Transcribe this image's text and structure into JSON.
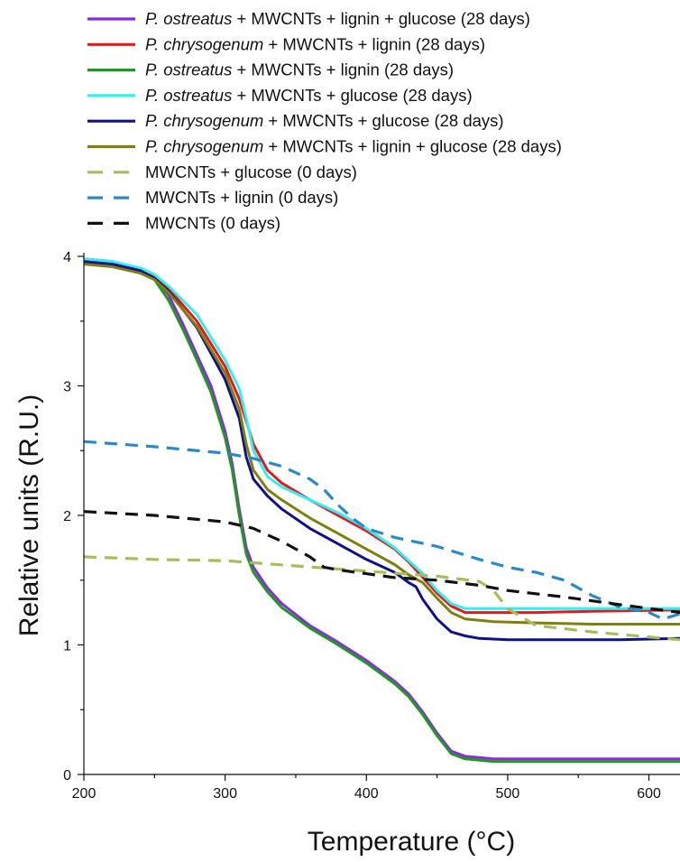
{
  "chart_data": {
    "type": "line",
    "xlabel": "Temperature (°C)",
    "ylabel": "Relative units (R.U.)",
    "xlim": [
      200,
      622
    ],
    "ylim": [
      0,
      4
    ],
    "x_ticks": [
      "200",
      "300",
      "400",
      "500",
      "600"
    ],
    "y_ticks": [
      "0",
      "1",
      "2",
      "3",
      "4"
    ],
    "grid": false,
    "legend_position": "top",
    "series": [
      {
        "legend_parts": [
          {
            "text": "P. ostreatus",
            "italic": true
          },
          {
            "text": " + MWCNTs + lignin + glucose (28 days)",
            "italic": false
          }
        ],
        "color": "#8a2be2",
        "dash": "solid",
        "x": [
          200,
          220,
          240,
          250,
          260,
          270,
          280,
          290,
          300,
          305,
          310,
          315,
          320,
          330,
          340,
          360,
          380,
          400,
          420,
          430,
          440,
          450,
          460,
          470,
          490,
          520,
          560,
          622
        ],
        "y": [
          3.98,
          3.96,
          3.9,
          3.84,
          3.7,
          3.48,
          3.24,
          3.0,
          2.65,
          2.4,
          2.05,
          1.75,
          1.6,
          1.44,
          1.32,
          1.15,
          1.02,
          0.88,
          0.72,
          0.62,
          0.48,
          0.32,
          0.18,
          0.14,
          0.12,
          0.12,
          0.12,
          0.12
        ]
      },
      {
        "legend_parts": [
          {
            "text": "P. chrysogenum",
            "italic": true
          },
          {
            "text": " + MWCNTs + lignin (28 days)",
            "italic": false
          }
        ],
        "color": "#e31a1c",
        "dash": "solid",
        "x": [
          200,
          220,
          240,
          250,
          260,
          280,
          300,
          310,
          320,
          330,
          340,
          360,
          380,
          400,
          420,
          430,
          440,
          450,
          460,
          470,
          490,
          520,
          560,
          622
        ],
        "y": [
          3.98,
          3.96,
          3.9,
          3.85,
          3.75,
          3.5,
          3.15,
          2.9,
          2.55,
          2.35,
          2.25,
          2.12,
          2.0,
          1.88,
          1.74,
          1.64,
          1.52,
          1.4,
          1.3,
          1.25,
          1.25,
          1.25,
          1.26,
          1.27
        ]
      },
      {
        "legend_parts": [
          {
            "text": "P. ostreatus",
            "italic": true
          },
          {
            "text": " + MWCNTs + lignin (28 days)",
            "italic": false
          }
        ],
        "color": "#1f9a1f",
        "dash": "solid",
        "x": [
          200,
          220,
          240,
          250,
          260,
          270,
          280,
          290,
          300,
          305,
          310,
          315,
          320,
          330,
          340,
          360,
          380,
          400,
          420,
          430,
          440,
          450,
          460,
          470,
          490,
          520,
          560,
          622
        ],
        "y": [
          3.95,
          3.93,
          3.88,
          3.82,
          3.66,
          3.44,
          3.2,
          2.95,
          2.6,
          2.35,
          2.0,
          1.7,
          1.56,
          1.41,
          1.29,
          1.13,
          1.0,
          0.86,
          0.7,
          0.6,
          0.46,
          0.3,
          0.16,
          0.12,
          0.1,
          0.1,
          0.1,
          0.1
        ]
      },
      {
        "legend_parts": [
          {
            "text": "P. ostreatus",
            "italic": true
          },
          {
            "text": " + MWCNTs + glucose (28 days)",
            "italic": false
          }
        ],
        "color": "#33f0f0",
        "dash": "solid",
        "x": [
          200,
          220,
          240,
          250,
          260,
          280,
          300,
          310,
          315,
          320,
          330,
          340,
          360,
          380,
          400,
          420,
          430,
          440,
          450,
          460,
          470,
          490,
          520,
          560,
          622
        ],
        "y": [
          3.98,
          3.96,
          3.91,
          3.86,
          3.77,
          3.55,
          3.2,
          2.98,
          2.75,
          2.5,
          2.3,
          2.22,
          2.12,
          2.02,
          1.9,
          1.75,
          1.65,
          1.55,
          1.42,
          1.32,
          1.28,
          1.28,
          1.28,
          1.28,
          1.28
        ]
      },
      {
        "legend_parts": [
          {
            "text": "P. chrysogenum",
            "italic": true
          },
          {
            "text": " + MWCNTs + glucose (28 days)",
            "italic": false
          }
        ],
        "color": "#10108a",
        "dash": "solid",
        "x": [
          200,
          220,
          240,
          250,
          260,
          280,
          300,
          310,
          315,
          320,
          330,
          340,
          360,
          380,
          400,
          420,
          430,
          435,
          440,
          450,
          460,
          470,
          480,
          500,
          540,
          580,
          622
        ],
        "y": [
          3.96,
          3.94,
          3.89,
          3.83,
          3.73,
          3.45,
          3.05,
          2.75,
          2.45,
          2.28,
          2.15,
          2.05,
          1.9,
          1.78,
          1.66,
          1.56,
          1.48,
          1.45,
          1.35,
          1.2,
          1.1,
          1.07,
          1.05,
          1.04,
          1.04,
          1.04,
          1.05
        ]
      },
      {
        "legend_parts": [
          {
            "text": "P. chrysogenum",
            "italic": true
          },
          {
            "text": " + MWCNTs + lignin + glucose (28 days)",
            "italic": false
          }
        ],
        "color": "#808010",
        "dash": "solid",
        "x": [
          200,
          220,
          240,
          250,
          260,
          280,
          300,
          310,
          315,
          320,
          330,
          340,
          360,
          380,
          400,
          420,
          430,
          440,
          450,
          460,
          470,
          490,
          520,
          560,
          622
        ],
        "y": [
          3.94,
          3.92,
          3.87,
          3.82,
          3.72,
          3.46,
          3.1,
          2.82,
          2.55,
          2.35,
          2.2,
          2.12,
          1.98,
          1.86,
          1.74,
          1.62,
          1.54,
          1.48,
          1.36,
          1.25,
          1.2,
          1.18,
          1.17,
          1.16,
          1.16
        ]
      },
      {
        "legend_parts": [
          {
            "text": "MWCNTs + glucose (0 days)",
            "italic": false
          }
        ],
        "color": "#a8bd5a",
        "dash": "dash",
        "x": [
          200,
          250,
          300,
          350,
          400,
          450,
          480,
          490,
          500,
          520,
          560,
          622
        ],
        "y": [
          1.68,
          1.66,
          1.65,
          1.61,
          1.57,
          1.53,
          1.49,
          1.42,
          1.28,
          1.15,
          1.1,
          1.04
        ]
      },
      {
        "legend_parts": [
          {
            "text": "MWCNTs + lignin (0 days)",
            "italic": false
          }
        ],
        "color": "#2a8ac7",
        "dash": "dash",
        "x": [
          200,
          250,
          300,
          320,
          340,
          360,
          370,
          380,
          390,
          400,
          420,
          450,
          480,
          500,
          520,
          540,
          560,
          580,
          600,
          610,
          622
        ],
        "y": [
          2.57,
          2.53,
          2.48,
          2.44,
          2.38,
          2.28,
          2.2,
          2.08,
          1.98,
          1.9,
          1.83,
          1.76,
          1.66,
          1.6,
          1.56,
          1.5,
          1.38,
          1.29,
          1.25,
          1.2,
          1.24
        ]
      },
      {
        "legend_parts": [
          {
            "text": "MWCNTs  (0 days)",
            "italic": false
          }
        ],
        "color": "#111111",
        "dash": "dash",
        "x": [
          200,
          250,
          300,
          320,
          340,
          360,
          370,
          380,
          400,
          420,
          450,
          480,
          500,
          540,
          580,
          622
        ],
        "y": [
          2.03,
          2.0,
          1.95,
          1.9,
          1.8,
          1.68,
          1.6,
          1.58,
          1.55,
          1.52,
          1.5,
          1.46,
          1.42,
          1.37,
          1.31,
          1.25
        ]
      }
    ]
  }
}
